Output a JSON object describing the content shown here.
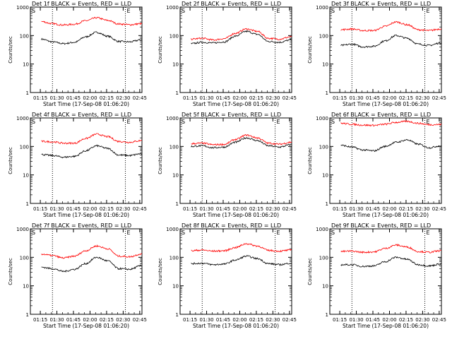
{
  "common": {
    "xlabel": "Start Time (17-Sep-08 01:06:20)",
    "ylabel": "Counts/sec",
    "x_ticks": [
      "01:15",
      "01:30",
      "01:45",
      "02:00",
      "02:15",
      "02:30",
      "02:45"
    ],
    "y_ticks": [
      "1",
      "10",
      "100",
      "1000"
    ],
    "markers": [
      "S",
      "E"
    ],
    "colors": {
      "events": "#000000",
      "lld": "#ff0000",
      "vline": "#000000"
    }
  },
  "chart_data": [
    {
      "type": "line",
      "title": "Det 1f BLACK = Events, RED = LLD",
      "x_unit": "minutes",
      "ylim": [
        1,
        1000
      ],
      "yscale": "log",
      "x": [
        10,
        20,
        30,
        40,
        50,
        60,
        70,
        80,
        90,
        100,
        101
      ],
      "series": [
        {
          "name": "Events",
          "color": "#000000",
          "values": [
            75,
            60,
            52,
            58,
            90,
            130,
            95,
            62,
            60,
            70,
            72
          ]
        },
        {
          "name": "LLD",
          "color": "#ff0000",
          "values": [
            310,
            260,
            235,
            250,
            330,
            420,
            340,
            255,
            240,
            260,
            265
          ]
        }
      ],
      "vlines": [
        20,
        86
      ]
    },
    {
      "type": "line",
      "title": "Det 2f BLACK = Events, RED = LLD",
      "x_unit": "minutes",
      "ylim": [
        1,
        1000
      ],
      "yscale": "log",
      "x": [
        10,
        20,
        30,
        40,
        50,
        60,
        70,
        80,
        90,
        100,
        101
      ],
      "series": [
        {
          "name": "Events",
          "color": "#000000",
          "values": [
            52,
            58,
            55,
            60,
            95,
            140,
            110,
            62,
            58,
            70,
            72
          ]
        },
        {
          "name": "LLD",
          "color": "#ff0000",
          "values": [
            75,
            80,
            70,
            78,
            120,
            170,
            140,
            80,
            75,
            90,
            95
          ]
        }
      ],
      "vlines": [
        20,
        86
      ]
    },
    {
      "type": "line",
      "title": "Det 3f BLACK = Events, RED = LLD",
      "x_unit": "minutes",
      "ylim": [
        1,
        1000
      ],
      "yscale": "log",
      "x": [
        10,
        20,
        30,
        40,
        50,
        60,
        70,
        80,
        90,
        100,
        101
      ],
      "series": [
        {
          "name": "Events",
          "color": "#000000",
          "values": [
            45,
            50,
            40,
            42,
            65,
            100,
            80,
            50,
            45,
            55,
            55
          ]
        },
        {
          "name": "LLD",
          "color": "#ff0000",
          "values": [
            160,
            170,
            150,
            150,
            210,
            300,
            240,
            160,
            150,
            170,
            175
          ]
        }
      ],
      "vlines": [
        20,
        86
      ]
    },
    {
      "type": "line",
      "title": "Det 4f BLACK = Events, RED = LLD",
      "x_unit": "minutes",
      "ylim": [
        1,
        1000
      ],
      "yscale": "log",
      "x": [
        10,
        20,
        30,
        40,
        50,
        60,
        70,
        80,
        90,
        100,
        101
      ],
      "series": [
        {
          "name": "Events",
          "color": "#000000",
          "values": [
            52,
            48,
            42,
            45,
            70,
            105,
            85,
            50,
            48,
            55,
            55
          ]
        },
        {
          "name": "LLD",
          "color": "#ff0000",
          "values": [
            150,
            145,
            130,
            130,
            190,
            270,
            220,
            150,
            140,
            160,
            165
          ]
        }
      ],
      "vlines": [
        20,
        86
      ]
    },
    {
      "type": "line",
      "title": "Det 5f BLACK = Events, RED = LLD",
      "x_unit": "minutes",
      "ylim": [
        1,
        1000
      ],
      "yscale": "log",
      "x": [
        10,
        20,
        30,
        40,
        50,
        60,
        70,
        80,
        90,
        100,
        101
      ],
      "series": [
        {
          "name": "Events",
          "color": "#000000",
          "values": [
            100,
            105,
            90,
            95,
            140,
            200,
            160,
            105,
            95,
            115,
            120
          ]
        },
        {
          "name": "LLD",
          "color": "#ff0000",
          "values": [
            125,
            130,
            115,
            118,
            175,
            250,
            200,
            130,
            120,
            140,
            145
          ]
        }
      ],
      "vlines": [
        20,
        86
      ]
    },
    {
      "type": "line",
      "title": "Det 6f BLACK = Events, RED = LLD",
      "x_unit": "minutes",
      "ylim": [
        1,
        1000
      ],
      "yscale": "log",
      "x": [
        10,
        20,
        30,
        40,
        50,
        60,
        70,
        80,
        90,
        100,
        101
      ],
      "series": [
        {
          "name": "Events",
          "color": "#000000",
          "values": [
            110,
            95,
            75,
            70,
            100,
            140,
            170,
            120,
            90,
            105,
            105
          ]
        },
        {
          "name": "LLD",
          "color": "#ff0000",
          "values": [
            650,
            600,
            560,
            550,
            600,
            700,
            760,
            650,
            580,
            590,
            595
          ]
        }
      ],
      "vlines": [
        20,
        86
      ]
    },
    {
      "type": "line",
      "title": "Det 7f BLACK = Events, RED = LLD",
      "x_unit": "minutes",
      "ylim": [
        1,
        1000
      ],
      "yscale": "log",
      "x": [
        10,
        20,
        30,
        40,
        50,
        60,
        70,
        80,
        90,
        100,
        101
      ],
      "series": [
        {
          "name": "Events",
          "color": "#000000",
          "values": [
            45,
            40,
            32,
            38,
            60,
            100,
            75,
            40,
            38,
            50,
            52
          ]
        },
        {
          "name": "LLD",
          "color": "#ff0000",
          "values": [
            130,
            115,
            95,
            110,
            170,
            250,
            200,
            110,
            105,
            130,
            135
          ]
        }
      ],
      "vlines": [
        20,
        86
      ]
    },
    {
      "type": "line",
      "title": "Det 8f BLACK = Events, RED = LLD",
      "x_unit": "minutes",
      "ylim": [
        1,
        1000
      ],
      "yscale": "log",
      "x": [
        10,
        20,
        30,
        40,
        50,
        60,
        70,
        80,
        90,
        100,
        101
      ],
      "series": [
        {
          "name": "Events",
          "color": "#000000",
          "values": [
            60,
            62,
            55,
            58,
            80,
            110,
            90,
            60,
            55,
            62,
            62
          ]
        },
        {
          "name": "LLD",
          "color": "#ff0000",
          "values": [
            170,
            180,
            165,
            170,
            220,
            300,
            250,
            175,
            165,
            180,
            185
          ]
        }
      ],
      "vlines": [
        20,
        86
      ]
    },
    {
      "type": "line",
      "title": "Det 9f BLACK = Events, RED = LLD",
      "x_unit": "minutes",
      "ylim": [
        1,
        1000
      ],
      "yscale": "log",
      "x": [
        10,
        20,
        30,
        40,
        50,
        60,
        70,
        80,
        90,
        100,
        101
      ],
      "series": [
        {
          "name": "Events",
          "color": "#000000",
          "values": [
            55,
            55,
            48,
            50,
            70,
            100,
            85,
            55,
            50,
            58,
            58
          ]
        },
        {
          "name": "LLD",
          "color": "#ff0000",
          "values": [
            160,
            165,
            150,
            155,
            205,
            270,
            230,
            160,
            150,
            170,
            175
          ]
        }
      ],
      "vlines": [
        20,
        86
      ]
    }
  ]
}
